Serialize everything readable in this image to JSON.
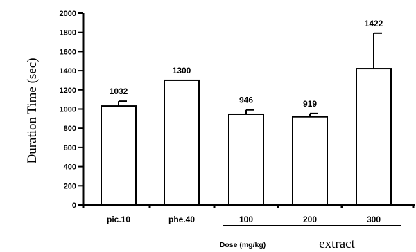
{
  "chart_data": {
    "type": "bar",
    "categories": [
      "pic.10",
      "phe.40",
      "100",
      "200",
      "300"
    ],
    "values": [
      1032,
      1300,
      946,
      919,
      1422
    ],
    "error_plus": [
      50,
      0,
      45,
      35,
      370
    ],
    "data_labels": [
      "1032",
      "1300",
      "946",
      "919",
      "1422"
    ],
    "yticks": [
      0,
      200,
      400,
      600,
      800,
      1000,
      1200,
      1400,
      1600,
      1800,
      2000
    ],
    "ylim": [
      0,
      2000
    ],
    "ylabel": "Duration Time (sec)",
    "xlabel": "Dose (mg/kg)",
    "group_label": "extract",
    "group_categories": [
      "100",
      "200",
      "300"
    ],
    "bar_fill": "#ffffff",
    "bar_stroke": "#000000"
  }
}
